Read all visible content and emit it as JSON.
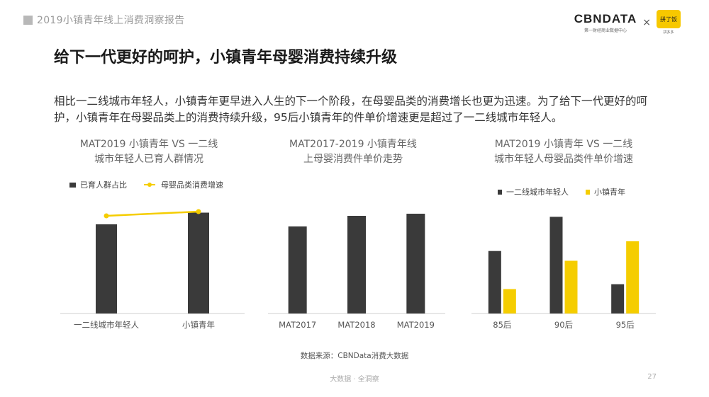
{
  "header": {
    "report_title": "2019小镇青年线上消费洞察报告",
    "logo_main": "CBNDATA",
    "logo_sub": "第一财经商业数据中心",
    "logo_separator": "×",
    "partner_logo": "拼了饭",
    "partner_sub": "拼多多"
  },
  "heading": "给下一代更好的呵护，小镇青年母婴消费持续升级",
  "body_text": "相比一二线城市年轻人，小镇青年更早进入人生的下一个阶段，在母婴品类的消费增长也更为迅速。为了给下一代更好的呵护，小镇青年在母婴品类上的消费持续升级，95后小镇青年的件单价增速更是超过了一二线城市年轻人。",
  "colors": {
    "dark": "#3a3a3a",
    "yellow": "#f5cd00",
    "axis": "#cfcfcf"
  },
  "chart_data": [
    {
      "type": "bar",
      "title": [
        "MAT2019 小镇青年 VS 一二线",
        "城市年轻人已育人群情况"
      ],
      "categories": [
        "一二线城市年轻人",
        "小镇青年"
      ],
      "legend": [
        "已育人群占比",
        "母婴品类消费增速"
      ],
      "series": [
        {
          "name": "已育人群占比",
          "kind": "bar",
          "values": [
            0.84,
            0.95
          ]
        },
        {
          "name": "母婴品类消费增速",
          "kind": "line",
          "values": [
            0.92,
            0.96
          ]
        }
      ],
      "axis_labels": "none",
      "legend_position": "top"
    },
    {
      "type": "bar",
      "title": [
        "MAT2017-2019 小镇青年线",
        "上母婴消费件单价走势"
      ],
      "categories": [
        "MAT2017",
        "MAT2018",
        "MAT2019"
      ],
      "series": [
        {
          "name": "",
          "values": [
            0.82,
            0.92,
            0.94
          ]
        }
      ],
      "axis_labels": "none"
    },
    {
      "type": "bar",
      "title": [
        "MAT2019 小镇青年 VS 一二线",
        "城市年轻人母婴品类件单价增速"
      ],
      "categories": [
        "85后",
        "90后",
        "95后"
      ],
      "legend": [
        "一二线城市年轻人",
        "小镇青年"
      ],
      "series": [
        {
          "name": "一二线城市年轻人",
          "values": [
            0.64,
            0.99,
            0.3
          ]
        },
        {
          "name": "小镇青年",
          "values": [
            0.25,
            0.54,
            0.74
          ]
        }
      ],
      "axis_labels": "none",
      "legend_position": "top"
    }
  ],
  "source": "数据来源：CBNData消费大数据",
  "footer": "大数据 · 全洞察",
  "page_number": "27"
}
